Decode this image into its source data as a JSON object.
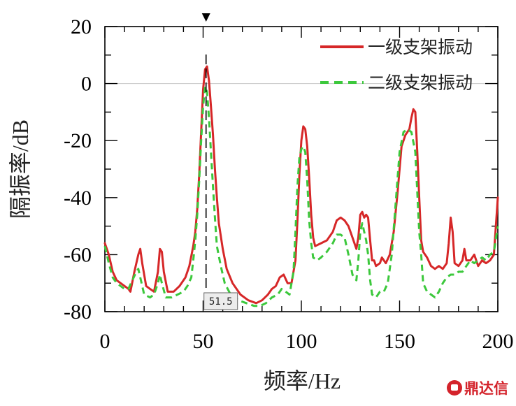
{
  "chart_data": {
    "type": "line",
    "title": "",
    "xlabel": "频率/Hz",
    "ylabel": "隔振率/dB",
    "xlim": [
      0,
      200
    ],
    "ylim": [
      -80,
      20
    ],
    "xticks": [
      0,
      50,
      100,
      150,
      200
    ],
    "yticks": [
      20,
      0,
      -20,
      -40,
      -60,
      -80
    ],
    "grid": false,
    "zero_line": true,
    "legend_position": "top-right",
    "marker": {
      "x": 51.5,
      "label": "51.5"
    },
    "series": [
      {
        "name": "一级支架振动",
        "color": "#d62728",
        "style": "solid",
        "points": [
          [
            0,
            -56
          ],
          [
            2,
            -60
          ],
          [
            4,
            -66
          ],
          [
            6,
            -69
          ],
          [
            8,
            -70
          ],
          [
            10,
            -71
          ],
          [
            12,
            -72
          ],
          [
            13,
            -73
          ],
          [
            15,
            -66
          ],
          [
            17,
            -60
          ],
          [
            18,
            -58
          ],
          [
            19,
            -63
          ],
          [
            21,
            -71
          ],
          [
            23,
            -72
          ],
          [
            25,
            -73
          ],
          [
            27,
            -66
          ],
          [
            28,
            -58
          ],
          [
            29,
            -59
          ],
          [
            30,
            -66
          ],
          [
            32,
            -73
          ],
          [
            35,
            -73
          ],
          [
            38,
            -71
          ],
          [
            41,
            -68
          ],
          [
            43,
            -64
          ],
          [
            45,
            -57
          ],
          [
            46,
            -52
          ],
          [
            47,
            -44
          ],
          [
            48,
            -32
          ],
          [
            49,
            -17
          ],
          [
            50,
            -2
          ],
          [
            51,
            5
          ],
          [
            52,
            6
          ],
          [
            53,
            1
          ],
          [
            54,
            -8
          ],
          [
            55,
            -18
          ],
          [
            56,
            -30
          ],
          [
            57,
            -40
          ],
          [
            58,
            -49
          ],
          [
            60,
            -58
          ],
          [
            62,
            -65
          ],
          [
            65,
            -70
          ],
          [
            69,
            -74
          ],
          [
            73,
            -76
          ],
          [
            77,
            -77
          ],
          [
            80,
            -76
          ],
          [
            83,
            -74
          ],
          [
            85,
            -72
          ],
          [
            87,
            -71
          ],
          [
            89,
            -68
          ],
          [
            91,
            -67
          ],
          [
            93,
            -70
          ],
          [
            95,
            -70
          ],
          [
            97,
            -62
          ],
          [
            98,
            -48
          ],
          [
            99,
            -32
          ],
          [
            100,
            -20
          ],
          [
            101,
            -15
          ],
          [
            102,
            -16
          ],
          [
            103,
            -22
          ],
          [
            104,
            -33
          ],
          [
            105,
            -46
          ],
          [
            106,
            -54
          ],
          [
            107,
            -57
          ],
          [
            110,
            -56
          ],
          [
            113,
            -55
          ],
          [
            116,
            -52
          ],
          [
            118,
            -48
          ],
          [
            120,
            -47
          ],
          [
            122,
            -48
          ],
          [
            124,
            -50
          ],
          [
            126,
            -54
          ],
          [
            128,
            -58
          ],
          [
            129,
            -54
          ],
          [
            130,
            -46
          ],
          [
            131,
            -45
          ],
          [
            132,
            -47
          ],
          [
            133,
            -46
          ],
          [
            134,
            -47
          ],
          [
            135,
            -55
          ],
          [
            136,
            -62
          ],
          [
            137,
            -62
          ],
          [
            138,
            -64
          ],
          [
            140,
            -63
          ],
          [
            141,
            -61
          ],
          [
            143,
            -63
          ],
          [
            145,
            -60
          ],
          [
            147,
            -52
          ],
          [
            149,
            -38
          ],
          [
            151,
            -22
          ],
          [
            153,
            -18
          ],
          [
            155,
            -16
          ],
          [
            156,
            -12
          ],
          [
            157,
            -9
          ],
          [
            158,
            -10
          ],
          [
            159,
            -24
          ],
          [
            160,
            -40
          ],
          [
            161,
            -55
          ],
          [
            162,
            -59
          ],
          [
            164,
            -61
          ],
          [
            166,
            -64
          ],
          [
            168,
            -65
          ],
          [
            170,
            -64
          ],
          [
            172,
            -65
          ],
          [
            174,
            -63
          ],
          [
            175,
            -56
          ],
          [
            176,
            -47
          ],
          [
            177,
            -52
          ],
          [
            178,
            -63
          ],
          [
            180,
            -64
          ],
          [
            182,
            -62
          ],
          [
            183,
            -58
          ],
          [
            184,
            -62
          ],
          [
            186,
            -62
          ],
          [
            188,
            -60
          ],
          [
            190,
            -64
          ],
          [
            192,
            -62
          ],
          [
            194,
            -63
          ],
          [
            196,
            -62
          ],
          [
            198,
            -60
          ],
          [
            200,
            -40
          ]
        ]
      },
      {
        "name": "二级支架振动",
        "color": "#3cc83c",
        "style": "dashed",
        "points": [
          [
            0,
            -57
          ],
          [
            2,
            -63
          ],
          [
            4,
            -68
          ],
          [
            6,
            -70
          ],
          [
            8,
            -71
          ],
          [
            10,
            -72
          ],
          [
            12,
            -72
          ],
          [
            14,
            -69
          ],
          [
            16,
            -66
          ],
          [
            17,
            -65
          ],
          [
            18,
            -68
          ],
          [
            20,
            -74
          ],
          [
            23,
            -75
          ],
          [
            25,
            -74
          ],
          [
            27,
            -70
          ],
          [
            28,
            -67
          ],
          [
            29,
            -70
          ],
          [
            31,
            -75
          ],
          [
            34,
            -75
          ],
          [
            37,
            -74
          ],
          [
            40,
            -73
          ],
          [
            42,
            -71
          ],
          [
            44,
            -68
          ],
          [
            45,
            -62
          ],
          [
            46,
            -55
          ],
          [
            47,
            -46
          ],
          [
            48,
            -34
          ],
          [
            49,
            -20
          ],
          [
            50,
            -8
          ],
          [
            51,
            -1
          ],
          [
            52,
            -3
          ],
          [
            53,
            -12
          ],
          [
            54,
            -24
          ],
          [
            55,
            -36
          ],
          [
            56,
            -47
          ],
          [
            57,
            -57
          ],
          [
            59,
            -64
          ],
          [
            61,
            -70
          ],
          [
            64,
            -74
          ],
          [
            68,
            -76
          ],
          [
            72,
            -77
          ],
          [
            76,
            -78
          ],
          [
            79,
            -78
          ],
          [
            82,
            -77
          ],
          [
            85,
            -75
          ],
          [
            88,
            -74
          ],
          [
            90,
            -72
          ],
          [
            92,
            -73
          ],
          [
            94,
            -74
          ],
          [
            96,
            -66
          ],
          [
            97,
            -52
          ],
          [
            98,
            -36
          ],
          [
            99,
            -26
          ],
          [
            100,
            -23
          ],
          [
            101,
            -22
          ],
          [
            102,
            -24
          ],
          [
            103,
            -34
          ],
          [
            104,
            -48
          ],
          [
            105,
            -56
          ],
          [
            106,
            -61
          ],
          [
            108,
            -62
          ],
          [
            110,
            -61
          ],
          [
            113,
            -59
          ],
          [
            116,
            -56
          ],
          [
            118,
            -53
          ],
          [
            120,
            -53
          ],
          [
            122,
            -54
          ],
          [
            124,
            -60
          ],
          [
            126,
            -67
          ],
          [
            128,
            -69
          ],
          [
            129,
            -62
          ],
          [
            130,
            -52
          ],
          [
            131,
            -49
          ],
          [
            132,
            -52
          ],
          [
            133,
            -55
          ],
          [
            134,
            -60
          ],
          [
            135,
            -69
          ],
          [
            136,
            -74
          ],
          [
            138,
            -75
          ],
          [
            140,
            -73
          ],
          [
            142,
            -73
          ],
          [
            144,
            -70
          ],
          [
            146,
            -60
          ],
          [
            148,
            -42
          ],
          [
            150,
            -24
          ],
          [
            152,
            -17
          ],
          [
            154,
            -16
          ],
          [
            156,
            -17
          ],
          [
            158,
            -24
          ],
          [
            159,
            -38
          ],
          [
            160,
            -52
          ],
          [
            161,
            -60
          ],
          [
            162,
            -70
          ],
          [
            164,
            -73
          ],
          [
            166,
            -74
          ],
          [
            168,
            -75
          ],
          [
            170,
            -73
          ],
          [
            172,
            -70
          ],
          [
            174,
            -68
          ],
          [
            176,
            -67
          ],
          [
            178,
            -67
          ],
          [
            180,
            -66
          ],
          [
            182,
            -66
          ],
          [
            184,
            -64
          ],
          [
            186,
            -62
          ],
          [
            188,
            -63
          ],
          [
            190,
            -62
          ],
          [
            192,
            -61
          ],
          [
            194,
            -62
          ],
          [
            196,
            -60
          ],
          [
            198,
            -59
          ],
          [
            200,
            -50
          ]
        ]
      }
    ]
  },
  "watermark": {
    "text": "鼎达信"
  }
}
